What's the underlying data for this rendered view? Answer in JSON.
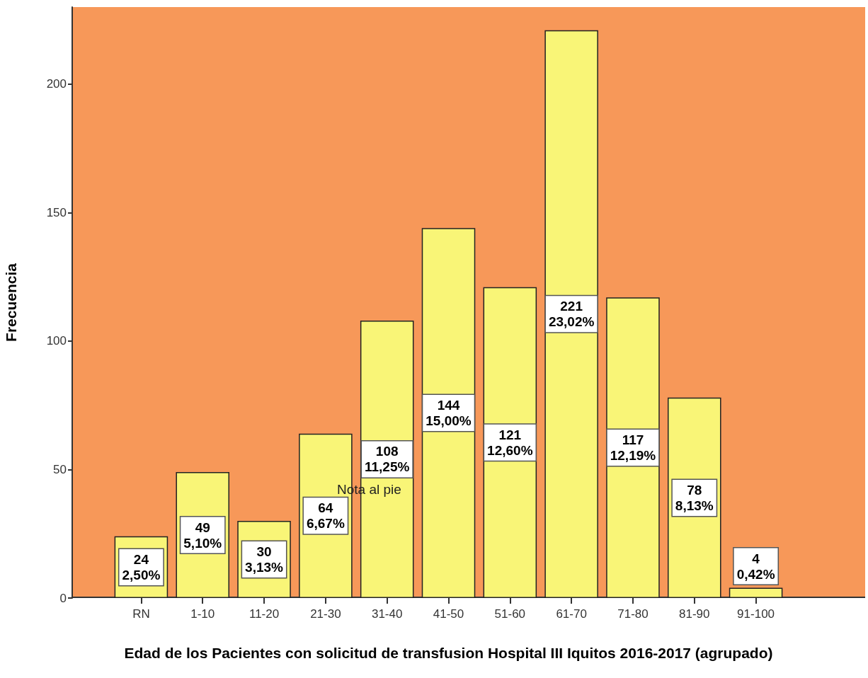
{
  "chart_data": {
    "type": "bar",
    "xlabel": "Edad de los Pacientes con solicitud de transfusion Hospital III Iquitos 2016-2017 (agrupado)",
    "ylabel": "Frecuencia",
    "categories": [
      "RN",
      "1-10",
      "11-20",
      "21-30",
      "31-40",
      "41-50",
      "51-60",
      "61-70",
      "71-80",
      "81-90",
      "91-100"
    ],
    "values": [
      24,
      49,
      30,
      64,
      108,
      144,
      121,
      221,
      117,
      78,
      4
    ],
    "value_labels": [
      "24\n2,50%",
      "49\n5,10%",
      "30\n3,13%",
      "64\n6,67%",
      "108\n11,25%",
      "144\n15,00%",
      "121\n12,60%",
      "221\n23,02%",
      "117\n12,19%",
      "78\n8,13%",
      "4\n0,42%"
    ],
    "color": "#f9f577",
    "ylim": [
      0,
      230
    ],
    "yticks": [
      0,
      50,
      100,
      150,
      200
    ],
    "grid": false,
    "annotations": [
      "Nota al pie"
    ]
  }
}
